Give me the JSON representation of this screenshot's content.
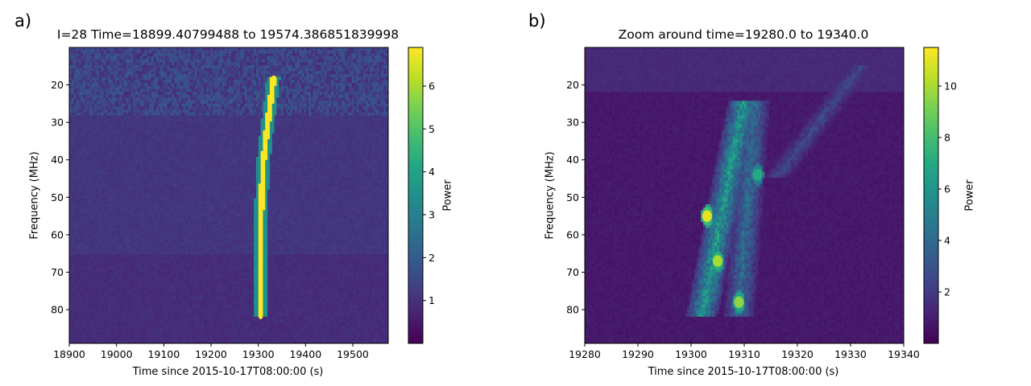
{
  "chart_data": [
    {
      "panel_label": "a)",
      "type": "heatmap",
      "title": "I=28 Time=18899.40799488 to 19574.386851839998",
      "xlabel": "Time since 2015-10-17T08:00:00 (s)",
      "ylabel": "Frequency (MHz)",
      "colorbar_label": "Power",
      "xlim": [
        18900,
        19575
      ],
      "ylim_top_to_bottom": [
        10,
        89
      ],
      "x_ticks": [
        "18900",
        "19000",
        "19100",
        "19200",
        "19300",
        "19400",
        "19500"
      ],
      "x_tick_values": [
        18900,
        19000,
        19100,
        19200,
        19300,
        19400,
        19500
      ],
      "y_ticks": [
        "20",
        "30",
        "40",
        "50",
        "60",
        "70",
        "80"
      ],
      "y_tick_values": [
        20,
        30,
        40,
        50,
        60,
        70,
        80
      ],
      "colorbar_range": [
        0,
        6.9
      ],
      "colorbar_ticks": [
        "1",
        "2",
        "3",
        "4",
        "5",
        "6"
      ],
      "colorbar_tick_values": [
        1,
        2,
        3,
        4,
        5,
        6
      ],
      "colormap": "viridis",
      "background_power_low_freq": 1.4,
      "background_power_high_freq": 0.9,
      "burst_track": [
        {
          "freq": 18,
          "time": 19333
        },
        {
          "freq": 30,
          "time": 19320
        },
        {
          "freq": 40,
          "time": 19311
        },
        {
          "freq": 50,
          "time": 19307
        },
        {
          "freq": 60,
          "time": 19305
        },
        {
          "freq": 70,
          "time": 19304
        },
        {
          "freq": 82,
          "time": 19305
        }
      ],
      "burst_power": 6.9
    },
    {
      "panel_label": "b)",
      "type": "heatmap",
      "title": "Zoom around time=19280.0 to 19340.0",
      "xlabel": "Time since 2015-10-17T08:00:00 (s)",
      "ylabel": "Frequency (MHz)",
      "colorbar_label": "Power",
      "xlim": [
        19280,
        19340
      ],
      "ylim_top_to_bottom": [
        10,
        89
      ],
      "x_ticks": [
        "19280",
        "19290",
        "19300",
        "19310",
        "19320",
        "19330",
        "19340"
      ],
      "x_tick_values": [
        19280,
        19290,
        19300,
        19310,
        19320,
        19330,
        19340
      ],
      "y_ticks": [
        "20",
        "30",
        "40",
        "50",
        "60",
        "70",
        "80"
      ],
      "y_tick_values": [
        20,
        30,
        40,
        50,
        60,
        70,
        80
      ],
      "colorbar_range": [
        0,
        11.5
      ],
      "colorbar_ticks": [
        "2",
        "4",
        "6",
        "8",
        "10"
      ],
      "colorbar_tick_values": [
        2,
        4,
        6,
        8,
        10
      ],
      "colormap": "viridis",
      "background_power": 0.8,
      "emission_bands": [
        {
          "freq_start": 24,
          "freq_end": 82,
          "time_start": 19310,
          "time_end": 19302,
          "power": 6
        },
        {
          "freq_start": 24,
          "freq_end": 82,
          "time_start": 19312,
          "time_end": 19309,
          "power": 4
        },
        {
          "freq_start": 15,
          "freq_end": 45,
          "time_start": 19332,
          "time_end": 19316,
          "power": 2.5
        }
      ],
      "hotspots": [
        {
          "time": 19303,
          "freq": 55,
          "power": 11
        },
        {
          "time": 19305,
          "freq": 67,
          "power": 10
        },
        {
          "time": 19309,
          "freq": 78,
          "power": 9.5
        },
        {
          "time": 19312.5,
          "freq": 44,
          "power": 7
        }
      ]
    }
  ]
}
